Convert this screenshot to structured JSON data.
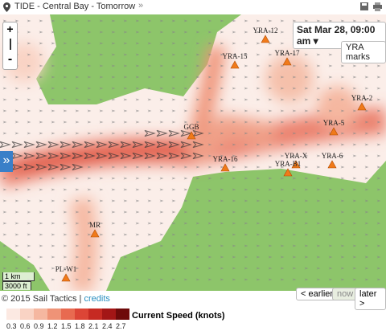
{
  "header": {
    "title": "TIDE - Central Bay - Tomorrow",
    "arrow": "»"
  },
  "controls": {
    "zoom_in": "+",
    "zoom_out": "-",
    "date": "Sat Mar 28, 09:00 am",
    "marks_button": "YRA marks",
    "expand": "»"
  },
  "marks": [
    "YRA-12",
    "YRA-15",
    "YRA-17",
    "YRA-2",
    "YRA-5",
    "GGB",
    "YRA-16",
    "YRA-X",
    "YRA-B1",
    "YRA-6",
    "MR",
    "PL-W1"
  ],
  "scale": {
    "metric": "1 km",
    "imperial": "3000 ft"
  },
  "footer": {
    "copyright": "© 2015 Sail Tactics |",
    "credits": "credits",
    "earlier": "< earlier",
    "now": "now",
    "later": "later >"
  },
  "legend": {
    "title": "Current Speed (knots)",
    "labels": [
      "0.3",
      "0.6",
      "0.9",
      "1.2",
      "1.5",
      "1.8",
      "2.1",
      "2.4",
      "2.7"
    ],
    "colors": [
      "#fce9e2",
      "#f9d3c4",
      "#f5b7a0",
      "#ef9377",
      "#e86a50",
      "#dc4536",
      "#c62a22",
      "#a31616",
      "#6e0a0a"
    ]
  }
}
